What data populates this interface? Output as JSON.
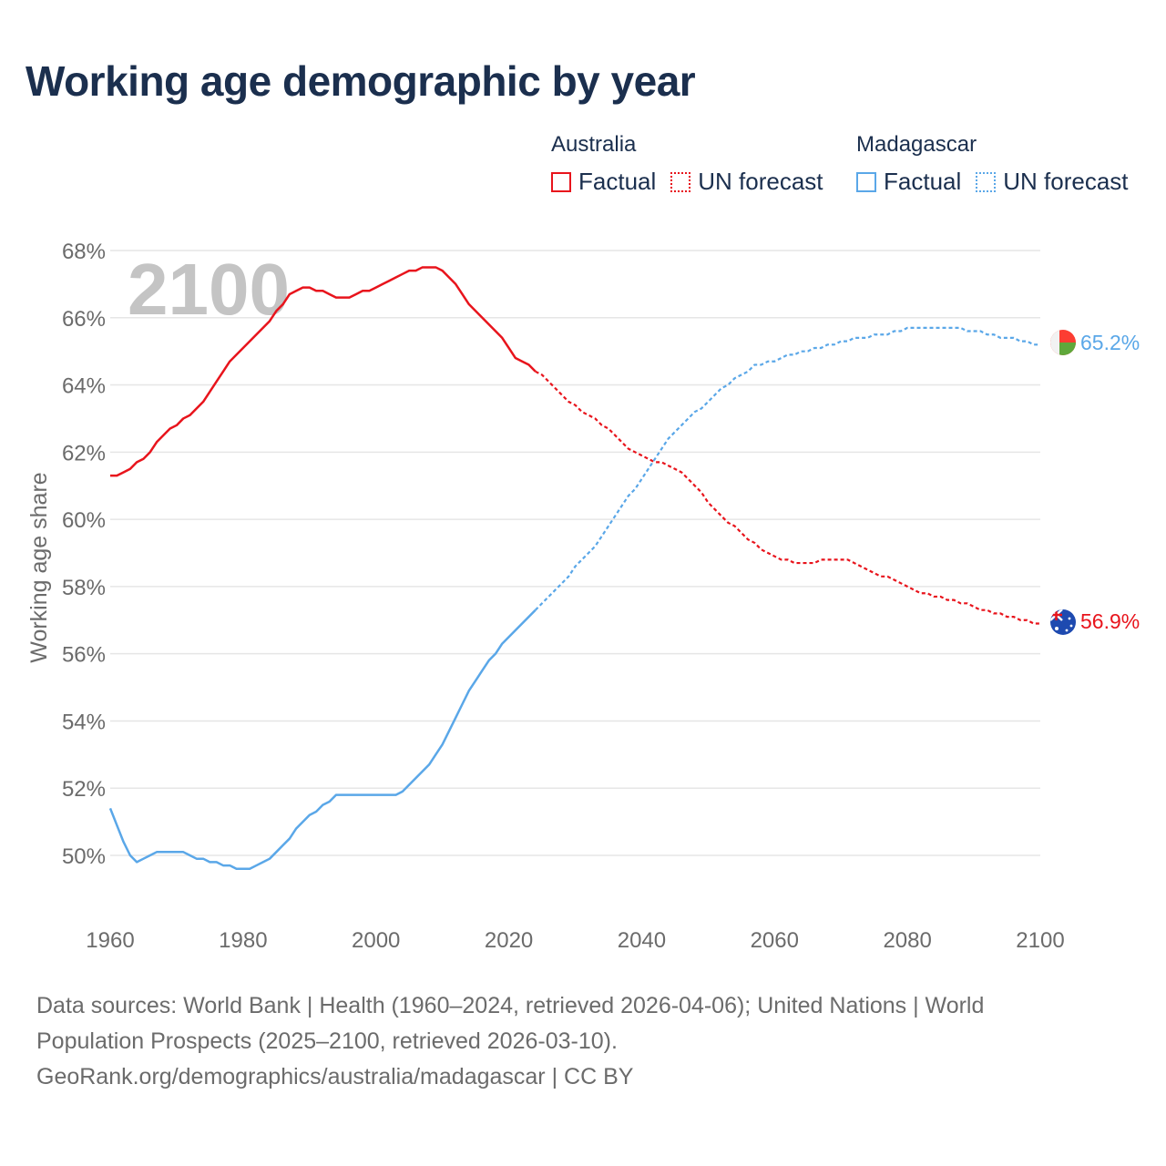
{
  "title": "Working age demographic by year",
  "legend": {
    "groups": [
      {
        "name": "Australia",
        "color": "#e8141c",
        "factual_label": "Factual",
        "forecast_label": "UN forecast"
      },
      {
        "name": "Madagascar",
        "color": "#5aa7e8",
        "factual_label": "Factual",
        "forecast_label": "UN forecast"
      }
    ]
  },
  "year_watermark": "2100",
  "footer": {
    "line1": "Data sources: World Bank | Health (1960–2024, retrieved 2026-04-06); United Nations | World",
    "line2": "Population Prospects (2025–2100, retrieved 2026-03-10).",
    "line3": "GeoRank.org/demographics/australia/madagascar | CC BY"
  },
  "chart_data": {
    "type": "line",
    "title": "Working age demographic by year",
    "xlabel": "",
    "ylabel": "Working age share",
    "xlim": [
      1960,
      2100
    ],
    "ylim": [
      48.2,
      68.6
    ],
    "x_ticks": [
      1960,
      1980,
      2000,
      2020,
      2040,
      2060,
      2080,
      2100
    ],
    "x_tick_labels": [
      "1960",
      "1980",
      "2000",
      "2020",
      "2040",
      "2060",
      "2080",
      "2100"
    ],
    "y_ticks": [
      50,
      52,
      54,
      56,
      58,
      60,
      62,
      64,
      66,
      68
    ],
    "y_tick_labels": [
      "50%",
      "52%",
      "54%",
      "56%",
      "58%",
      "60%",
      "62%",
      "64%",
      "66%",
      "68%"
    ],
    "grid": true,
    "forecast_start": 2024,
    "series": [
      {
        "name": "Australia",
        "color": "#e8141c",
        "end_label": "56.9%",
        "points": [
          [
            1960,
            61.3
          ],
          [
            1961,
            61.3
          ],
          [
            1962,
            61.4
          ],
          [
            1963,
            61.5
          ],
          [
            1964,
            61.7
          ],
          [
            1965,
            61.8
          ],
          [
            1966,
            62.0
          ],
          [
            1967,
            62.3
          ],
          [
            1968,
            62.5
          ],
          [
            1969,
            62.7
          ],
          [
            1970,
            62.8
          ],
          [
            1971,
            63.0
          ],
          [
            1972,
            63.1
          ],
          [
            1973,
            63.3
          ],
          [
            1974,
            63.5
          ],
          [
            1975,
            63.8
          ],
          [
            1976,
            64.1
          ],
          [
            1977,
            64.4
          ],
          [
            1978,
            64.7
          ],
          [
            1979,
            64.9
          ],
          [
            1980,
            65.1
          ],
          [
            1981,
            65.3
          ],
          [
            1982,
            65.5
          ],
          [
            1983,
            65.7
          ],
          [
            1984,
            65.9
          ],
          [
            1985,
            66.2
          ],
          [
            1986,
            66.4
          ],
          [
            1987,
            66.7
          ],
          [
            1988,
            66.8
          ],
          [
            1989,
            66.9
          ],
          [
            1990,
            66.9
          ],
          [
            1991,
            66.8
          ],
          [
            1992,
            66.8
          ],
          [
            1993,
            66.7
          ],
          [
            1994,
            66.6
          ],
          [
            1995,
            66.6
          ],
          [
            1996,
            66.6
          ],
          [
            1997,
            66.7
          ],
          [
            1998,
            66.8
          ],
          [
            1999,
            66.8
          ],
          [
            2000,
            66.9
          ],
          [
            2001,
            67.0
          ],
          [
            2002,
            67.1
          ],
          [
            2003,
            67.2
          ],
          [
            2004,
            67.3
          ],
          [
            2005,
            67.4
          ],
          [
            2006,
            67.4
          ],
          [
            2007,
            67.5
          ],
          [
            2008,
            67.5
          ],
          [
            2009,
            67.5
          ],
          [
            2010,
            67.4
          ],
          [
            2011,
            67.2
          ],
          [
            2012,
            67.0
          ],
          [
            2013,
            66.7
          ],
          [
            2014,
            66.4
          ],
          [
            2015,
            66.2
          ],
          [
            2016,
            66.0
          ],
          [
            2017,
            65.8
          ],
          [
            2018,
            65.6
          ],
          [
            2019,
            65.4
          ],
          [
            2020,
            65.1
          ],
          [
            2021,
            64.8
          ],
          [
            2022,
            64.7
          ],
          [
            2023,
            64.6
          ],
          [
            2024,
            64.4
          ],
          [
            2025,
            64.3
          ],
          [
            2026,
            64.1
          ],
          [
            2027,
            63.9
          ],
          [
            2028,
            63.7
          ],
          [
            2029,
            63.5
          ],
          [
            2030,
            63.4
          ],
          [
            2031,
            63.2
          ],
          [
            2032,
            63.1
          ],
          [
            2033,
            63.0
          ],
          [
            2034,
            62.8
          ],
          [
            2035,
            62.7
          ],
          [
            2036,
            62.5
          ],
          [
            2037,
            62.3
          ],
          [
            2038,
            62.1
          ],
          [
            2039,
            62.0
          ],
          [
            2040,
            61.9
          ],
          [
            2041,
            61.8
          ],
          [
            2042,
            61.7
          ],
          [
            2043,
            61.7
          ],
          [
            2044,
            61.6
          ],
          [
            2045,
            61.5
          ],
          [
            2046,
            61.4
          ],
          [
            2047,
            61.2
          ],
          [
            2048,
            61.0
          ],
          [
            2049,
            60.8
          ],
          [
            2050,
            60.5
          ],
          [
            2051,
            60.3
          ],
          [
            2052,
            60.1
          ],
          [
            2053,
            59.9
          ],
          [
            2054,
            59.8
          ],
          [
            2055,
            59.6
          ],
          [
            2056,
            59.4
          ],
          [
            2057,
            59.3
          ],
          [
            2058,
            59.1
          ],
          [
            2059,
            59.0
          ],
          [
            2060,
            58.9
          ],
          [
            2061,
            58.8
          ],
          [
            2062,
            58.8
          ],
          [
            2063,
            58.7
          ],
          [
            2064,
            58.7
          ],
          [
            2065,
            58.7
          ],
          [
            2066,
            58.7
          ],
          [
            2067,
            58.8
          ],
          [
            2068,
            58.8
          ],
          [
            2069,
            58.8
          ],
          [
            2070,
            58.8
          ],
          [
            2071,
            58.8
          ],
          [
            2072,
            58.7
          ],
          [
            2073,
            58.6
          ],
          [
            2074,
            58.5
          ],
          [
            2075,
            58.4
          ],
          [
            2076,
            58.3
          ],
          [
            2077,
            58.3
          ],
          [
            2078,
            58.2
          ],
          [
            2079,
            58.1
          ],
          [
            2080,
            58.0
          ],
          [
            2081,
            57.9
          ],
          [
            2082,
            57.8
          ],
          [
            2083,
            57.8
          ],
          [
            2084,
            57.7
          ],
          [
            2085,
            57.7
          ],
          [
            2086,
            57.6
          ],
          [
            2087,
            57.6
          ],
          [
            2088,
            57.5
          ],
          [
            2089,
            57.5
          ],
          [
            2090,
            57.4
          ],
          [
            2091,
            57.3
          ],
          [
            2092,
            57.3
          ],
          [
            2093,
            57.2
          ],
          [
            2094,
            57.2
          ],
          [
            2095,
            57.1
          ],
          [
            2096,
            57.1
          ],
          [
            2097,
            57.0
          ],
          [
            2098,
            57.0
          ],
          [
            2099,
            56.9
          ],
          [
            2100,
            56.9
          ]
        ]
      },
      {
        "name": "Madagascar",
        "color": "#5aa7e8",
        "end_label": "65.2%",
        "points": [
          [
            1960,
            51.4
          ],
          [
            1961,
            50.9
          ],
          [
            1962,
            50.4
          ],
          [
            1963,
            50.0
          ],
          [
            1964,
            49.8
          ],
          [
            1965,
            49.9
          ],
          [
            1966,
            50.0
          ],
          [
            1967,
            50.1
          ],
          [
            1968,
            50.1
          ],
          [
            1969,
            50.1
          ],
          [
            1970,
            50.1
          ],
          [
            1971,
            50.1
          ],
          [
            1972,
            50.0
          ],
          [
            1973,
            49.9
          ],
          [
            1974,
            49.9
          ],
          [
            1975,
            49.8
          ],
          [
            1976,
            49.8
          ],
          [
            1977,
            49.7
          ],
          [
            1978,
            49.7
          ],
          [
            1979,
            49.6
          ],
          [
            1980,
            49.6
          ],
          [
            1981,
            49.6
          ],
          [
            1982,
            49.7
          ],
          [
            1983,
            49.8
          ],
          [
            1984,
            49.9
          ],
          [
            1985,
            50.1
          ],
          [
            1986,
            50.3
          ],
          [
            1987,
            50.5
          ],
          [
            1988,
            50.8
          ],
          [
            1989,
            51.0
          ],
          [
            1990,
            51.2
          ],
          [
            1991,
            51.3
          ],
          [
            1992,
            51.5
          ],
          [
            1993,
            51.6
          ],
          [
            1994,
            51.8
          ],
          [
            1995,
            51.8
          ],
          [
            1996,
            51.8
          ],
          [
            1997,
            51.8
          ],
          [
            1998,
            51.8
          ],
          [
            1999,
            51.8
          ],
          [
            2000,
            51.8
          ],
          [
            2001,
            51.8
          ],
          [
            2002,
            51.8
          ],
          [
            2003,
            51.8
          ],
          [
            2004,
            51.9
          ],
          [
            2005,
            52.1
          ],
          [
            2006,
            52.3
          ],
          [
            2007,
            52.5
          ],
          [
            2008,
            52.7
          ],
          [
            2009,
            53.0
          ],
          [
            2010,
            53.3
          ],
          [
            2011,
            53.7
          ],
          [
            2012,
            54.1
          ],
          [
            2013,
            54.5
          ],
          [
            2014,
            54.9
          ],
          [
            2015,
            55.2
          ],
          [
            2016,
            55.5
          ],
          [
            2017,
            55.8
          ],
          [
            2018,
            56.0
          ],
          [
            2019,
            56.3
          ],
          [
            2020,
            56.5
          ],
          [
            2021,
            56.7
          ],
          [
            2022,
            56.9
          ],
          [
            2023,
            57.1
          ],
          [
            2024,
            57.3
          ],
          [
            2025,
            57.5
          ],
          [
            2026,
            57.7
          ],
          [
            2027,
            57.9
          ],
          [
            2028,
            58.1
          ],
          [
            2029,
            58.3
          ],
          [
            2030,
            58.6
          ],
          [
            2031,
            58.8
          ],
          [
            2032,
            59.0
          ],
          [
            2033,
            59.2
          ],
          [
            2034,
            59.5
          ],
          [
            2035,
            59.8
          ],
          [
            2036,
            60.1
          ],
          [
            2037,
            60.4
          ],
          [
            2038,
            60.7
          ],
          [
            2039,
            60.9
          ],
          [
            2040,
            61.2
          ],
          [
            2041,
            61.5
          ],
          [
            2042,
            61.8
          ],
          [
            2043,
            62.1
          ],
          [
            2044,
            62.4
          ],
          [
            2045,
            62.6
          ],
          [
            2046,
            62.8
          ],
          [
            2047,
            63.0
          ],
          [
            2048,
            63.2
          ],
          [
            2049,
            63.3
          ],
          [
            2050,
            63.5
          ],
          [
            2051,
            63.7
          ],
          [
            2052,
            63.9
          ],
          [
            2053,
            64.0
          ],
          [
            2054,
            64.2
          ],
          [
            2055,
            64.3
          ],
          [
            2056,
            64.4
          ],
          [
            2057,
            64.6
          ],
          [
            2058,
            64.6
          ],
          [
            2059,
            64.7
          ],
          [
            2060,
            64.7
          ],
          [
            2061,
            64.8
          ],
          [
            2062,
            64.9
          ],
          [
            2063,
            64.9
          ],
          [
            2064,
            65.0
          ],
          [
            2065,
            65.0
          ],
          [
            2066,
            65.1
          ],
          [
            2067,
            65.1
          ],
          [
            2068,
            65.2
          ],
          [
            2069,
            65.2
          ],
          [
            2070,
            65.3
          ],
          [
            2071,
            65.3
          ],
          [
            2072,
            65.4
          ],
          [
            2073,
            65.4
          ],
          [
            2074,
            65.4
          ],
          [
            2075,
            65.5
          ],
          [
            2076,
            65.5
          ],
          [
            2077,
            65.5
          ],
          [
            2078,
            65.6
          ],
          [
            2079,
            65.6
          ],
          [
            2080,
            65.7
          ],
          [
            2081,
            65.7
          ],
          [
            2082,
            65.7
          ],
          [
            2083,
            65.7
          ],
          [
            2084,
            65.7
          ],
          [
            2085,
            65.7
          ],
          [
            2086,
            65.7
          ],
          [
            2087,
            65.7
          ],
          [
            2088,
            65.7
          ],
          [
            2089,
            65.6
          ],
          [
            2090,
            65.6
          ],
          [
            2091,
            65.6
          ],
          [
            2092,
            65.5
          ],
          [
            2093,
            65.5
          ],
          [
            2094,
            65.4
          ],
          [
            2095,
            65.4
          ],
          [
            2096,
            65.4
          ],
          [
            2097,
            65.3
          ],
          [
            2098,
            65.3
          ],
          [
            2099,
            65.2
          ],
          [
            2100,
            65.2
          ]
        ]
      }
    ]
  }
}
